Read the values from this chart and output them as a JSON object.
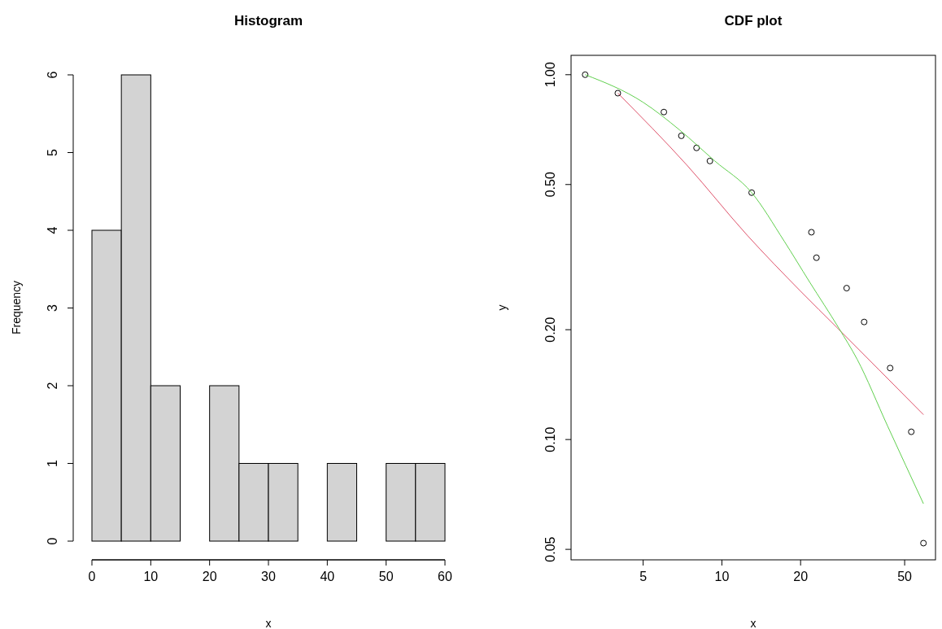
{
  "chart_data": [
    {
      "type": "histogram",
      "title": "Histogram",
      "xlabel": "x",
      "ylabel": "Frequency",
      "bins": [
        0,
        5,
        10,
        15,
        20,
        25,
        30,
        35,
        40,
        45,
        50,
        55,
        60
      ],
      "values": [
        4,
        6,
        2,
        0,
        2,
        1,
        1,
        0,
        1,
        0,
        1,
        1
      ],
      "color": "#d3d3d3",
      "xlim": [
        0,
        60
      ],
      "ylim": [
        0,
        6
      ],
      "xticks": [
        0,
        10,
        20,
        30,
        40,
        50,
        60
      ],
      "yticks": [
        0,
        1,
        2,
        3,
        4,
        5,
        6
      ],
      "grid": false
    },
    {
      "type": "scatter",
      "title": "CDF plot",
      "xlabel": "x",
      "ylabel": "y",
      "log": "xy",
      "xlim": [
        2.65,
        65.6
      ],
      "ylim": [
        0.0468,
        1.13
      ],
      "xticks": [
        5,
        10,
        20,
        50
      ],
      "yticks": [
        {
          "value": 0.05,
          "label": "0.05"
        },
        {
          "value": 0.1,
          "label": "0.10"
        },
        {
          "value": 0.2,
          "label": "0.20"
        },
        {
          "value": 0.5,
          "label": "0.50"
        },
        {
          "value": 1,
          "label": "1.00"
        }
      ],
      "grid": false,
      "series": [
        {
          "type": "scatter",
          "marker": "circle",
          "color": "#000000",
          "x": [
            3,
            4,
            6,
            7,
            8,
            9,
            13,
            22,
            23,
            30,
            35,
            44,
            53,
            59
          ],
          "values": [
            1.0,
            0.89,
            0.79,
            0.68,
            0.63,
            0.58,
            0.475,
            0.37,
            0.315,
            0.26,
            0.21,
            0.157,
            0.105,
            0.052
          ]
        },
        {
          "type": "line",
          "color": "#df536b",
          "x": [
            4,
            7.35,
            12.5,
            20,
            27.7,
            40,
            59
          ],
          "values": [
            0.89,
            0.565,
            0.363,
            0.255,
            0.202,
            0.155,
            0.117
          ]
        },
        {
          "type": "line",
          "color": "#61d04f",
          "x": [
            3,
            5,
            6.9,
            9.4,
            13,
            17.3,
            21.6,
            28,
            32.9,
            43,
            59
          ],
          "values": [
            1.0,
            0.84,
            0.705,
            0.58,
            0.475,
            0.35,
            0.271,
            0.202,
            0.166,
            0.109,
            0.0667
          ]
        }
      ]
    }
  ]
}
